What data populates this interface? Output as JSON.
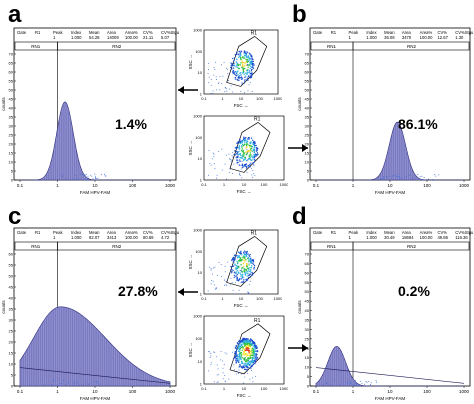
{
  "figure": {
    "panels": [
      {
        "letter": "a",
        "percent": "1.4%",
        "xlabel": "FAM HPV-FAM",
        "ylabel": "counts",
        "yticks": [
          "0",
          "5",
          "10",
          "15",
          "20",
          "25",
          "30",
          "35",
          "40",
          "45",
          "50",
          "55",
          "60",
          "65",
          "70"
        ],
        "xticks": [
          "0.1",
          "1",
          "10",
          "100",
          "1000"
        ],
        "gate_labels": [
          "RN1",
          "RN2"
        ],
        "stats_header": [
          "Gate",
          "R1",
          "Peak",
          "Index",
          "Mean",
          "Area",
          "Area%",
          "CV%",
          "CV%Stgu"
        ],
        "stats_values": [
          "1",
          "1.000",
          "54.28",
          "14009",
          "100.00",
          "21.11",
          "5.07"
        ],
        "fill_color": "#8f8fcf"
      },
      {
        "letter": "b",
        "percent": "86.1%",
        "xlabel": "FAM HPV-FAM",
        "ylabel": "counts",
        "yticks": [
          "0",
          "5",
          "10",
          "15",
          "20",
          "25",
          "30",
          "35",
          "40",
          "45",
          "50",
          "55",
          "60",
          "65",
          "70"
        ],
        "xticks": [
          "0.1",
          "1",
          "10",
          "100",
          "1000"
        ],
        "gate_labels": [
          "RN1",
          "RN2"
        ],
        "stats_header": [
          "Gate",
          "R1",
          "Peak",
          "Index",
          "Mean",
          "Area",
          "Area%",
          "CV%",
          "CV%Stgu"
        ],
        "stats_values": [
          "1",
          "1.000",
          "36.08",
          "3470",
          "100.00",
          "12.67",
          "1.30"
        ],
        "fill_color": "#8f8fcf"
      },
      {
        "letter": "c",
        "percent": "27.8%",
        "xlabel": "FAM HPV-FAM",
        "ylabel": "counts",
        "yticks": [
          "0",
          "5",
          "10",
          "15",
          "20",
          "25",
          "30",
          "35",
          "40",
          "45",
          "50",
          "55",
          "60"
        ],
        "xticks": [
          "0.1",
          "1",
          "10",
          "100",
          "1000"
        ],
        "gate_labels": [
          "RN1",
          "RN2"
        ],
        "stats_header": [
          "Gate",
          "R1",
          "Peak",
          "Index",
          "Mean",
          "Area",
          "Area%",
          "CV%",
          "CV%Stgu"
        ],
        "stats_values": [
          "1",
          "1.000",
          "82.07",
          "3413",
          "100.00",
          "80.69",
          "4.72"
        ],
        "fill_color": "#8f8fcf"
      },
      {
        "letter": "d",
        "percent": "0.2%",
        "xlabel": "FAM HPV-FAM",
        "ylabel": "counts",
        "yticks": [
          "0",
          "5",
          "10",
          "15",
          "20",
          "25",
          "30",
          "35",
          "40",
          "45",
          "50",
          "55",
          "60",
          "65",
          "70"
        ],
        "xticks": [
          "0.1",
          "1",
          "10",
          "100",
          "1000"
        ],
        "gate_labels": [
          "RN1",
          "RN2"
        ],
        "stats_header": [
          "Gate",
          "R1",
          "Peak",
          "Index",
          "Mean",
          "Area",
          "Area%",
          "CV%",
          "CV%Stgu"
        ],
        "stats_values": [
          "1",
          "1.000",
          "30.49",
          "18694",
          "100.00",
          "49.86",
          "116.36"
        ],
        "fill_color": "#8f8fcf"
      }
    ],
    "scatter_plots": [
      {
        "region": "R1",
        "xlabel": "FSC →",
        "ylabel": "SSC →",
        "xticks": [
          "0.1",
          "1",
          "10",
          "100",
          "1000"
        ],
        "yticks": [
          "1",
          "10",
          "100",
          "1000"
        ]
      },
      {
        "region": "R1",
        "xlabel": "FSC →",
        "ylabel": "SSC →",
        "xticks": [
          "0.1",
          "1",
          "10",
          "100",
          "1000"
        ],
        "yticks": [
          "1",
          "10",
          "100",
          "1000"
        ]
      },
      {
        "region": "R1",
        "xlabel": "FSC →",
        "ylabel": "SSC →",
        "xticks": [
          "0.1",
          "1",
          "10",
          "100",
          "1000"
        ],
        "yticks": [
          "1",
          "10",
          "100",
          "1000"
        ]
      },
      {
        "region": "R1",
        "xlabel": "FSC →",
        "ylabel": "SSC →",
        "xticks": [
          "0.1",
          "1",
          "10",
          "100",
          "1000"
        ],
        "yticks": [
          "1",
          "10",
          "100",
          "1000"
        ]
      }
    ],
    "arrows": [
      "←",
      "→",
      "←",
      "→"
    ]
  }
}
